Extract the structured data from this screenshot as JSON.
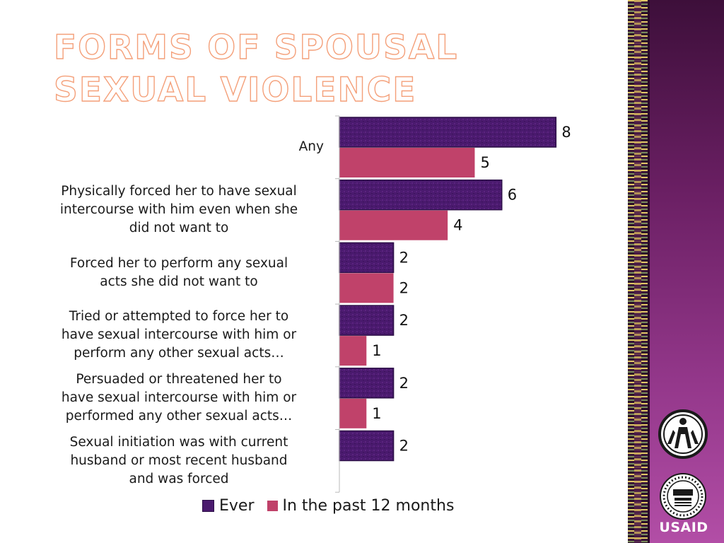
{
  "slide": {
    "title": "Forms of spousal sexual violence"
  },
  "chart_data": {
    "type": "bar",
    "orientation": "horizontal",
    "categories": [
      "Any",
      "Physically forced her to have sexual intercourse with him even when she did not want to",
      "Forced her to perform any sexual acts she did not want to",
      "Tried or attempted to force her to have sexual intercourse with him or perform any other sexual acts…",
      "Persuaded or threatened her to have sexual intercourse with him or performed any other sexual acts…",
      "Sexual initiation was with current husband or most recent husband and was forced"
    ],
    "category_label_lines": [
      [
        "Any"
      ],
      [
        "Physically forced her to have sexual",
        "intercourse with him even when she",
        "did not want to"
      ],
      [
        "Forced her to perform any sexual",
        "acts she did not want to"
      ],
      [
        "Tried or attempted to force her to",
        "have sexual intercourse with him or",
        "perform any other sexual acts…"
      ],
      [
        "Persuaded or threatened her to",
        "have sexual intercourse with him or",
        "performed any other sexual acts…"
      ],
      [
        "Sexual initiation was with current",
        "husband or most recent husband",
        "and was forced"
      ]
    ],
    "series": [
      {
        "name": "Ever",
        "values": [
          8,
          6,
          2,
          2,
          2,
          2
        ],
        "labels": [
          "8",
          "6",
          "2",
          "2",
          "2",
          "2"
        ]
      },
      {
        "name": "In the past 12 months",
        "values": [
          5,
          4,
          2,
          1,
          1,
          null
        ],
        "labels": [
          "5",
          "4",
          "2",
          "1",
          "1",
          ""
        ]
      }
    ],
    "xlim": [
      0,
      8.2
    ],
    "grid": false,
    "legend_position": "bottom",
    "colors": {
      "ever": "#4a1a6e",
      "ever_edge": "#2c0f47",
      "past12": "#c0426a"
    }
  },
  "branding": {
    "agency_name": "USAID",
    "seal_text": "UNITED STATES AGENCY INTERNATIONAL DEVELOPMENT",
    "tagline": "FROM THE AMERICAN PEOPLE",
    "emblem_icon": "figures-emblem-icon"
  }
}
